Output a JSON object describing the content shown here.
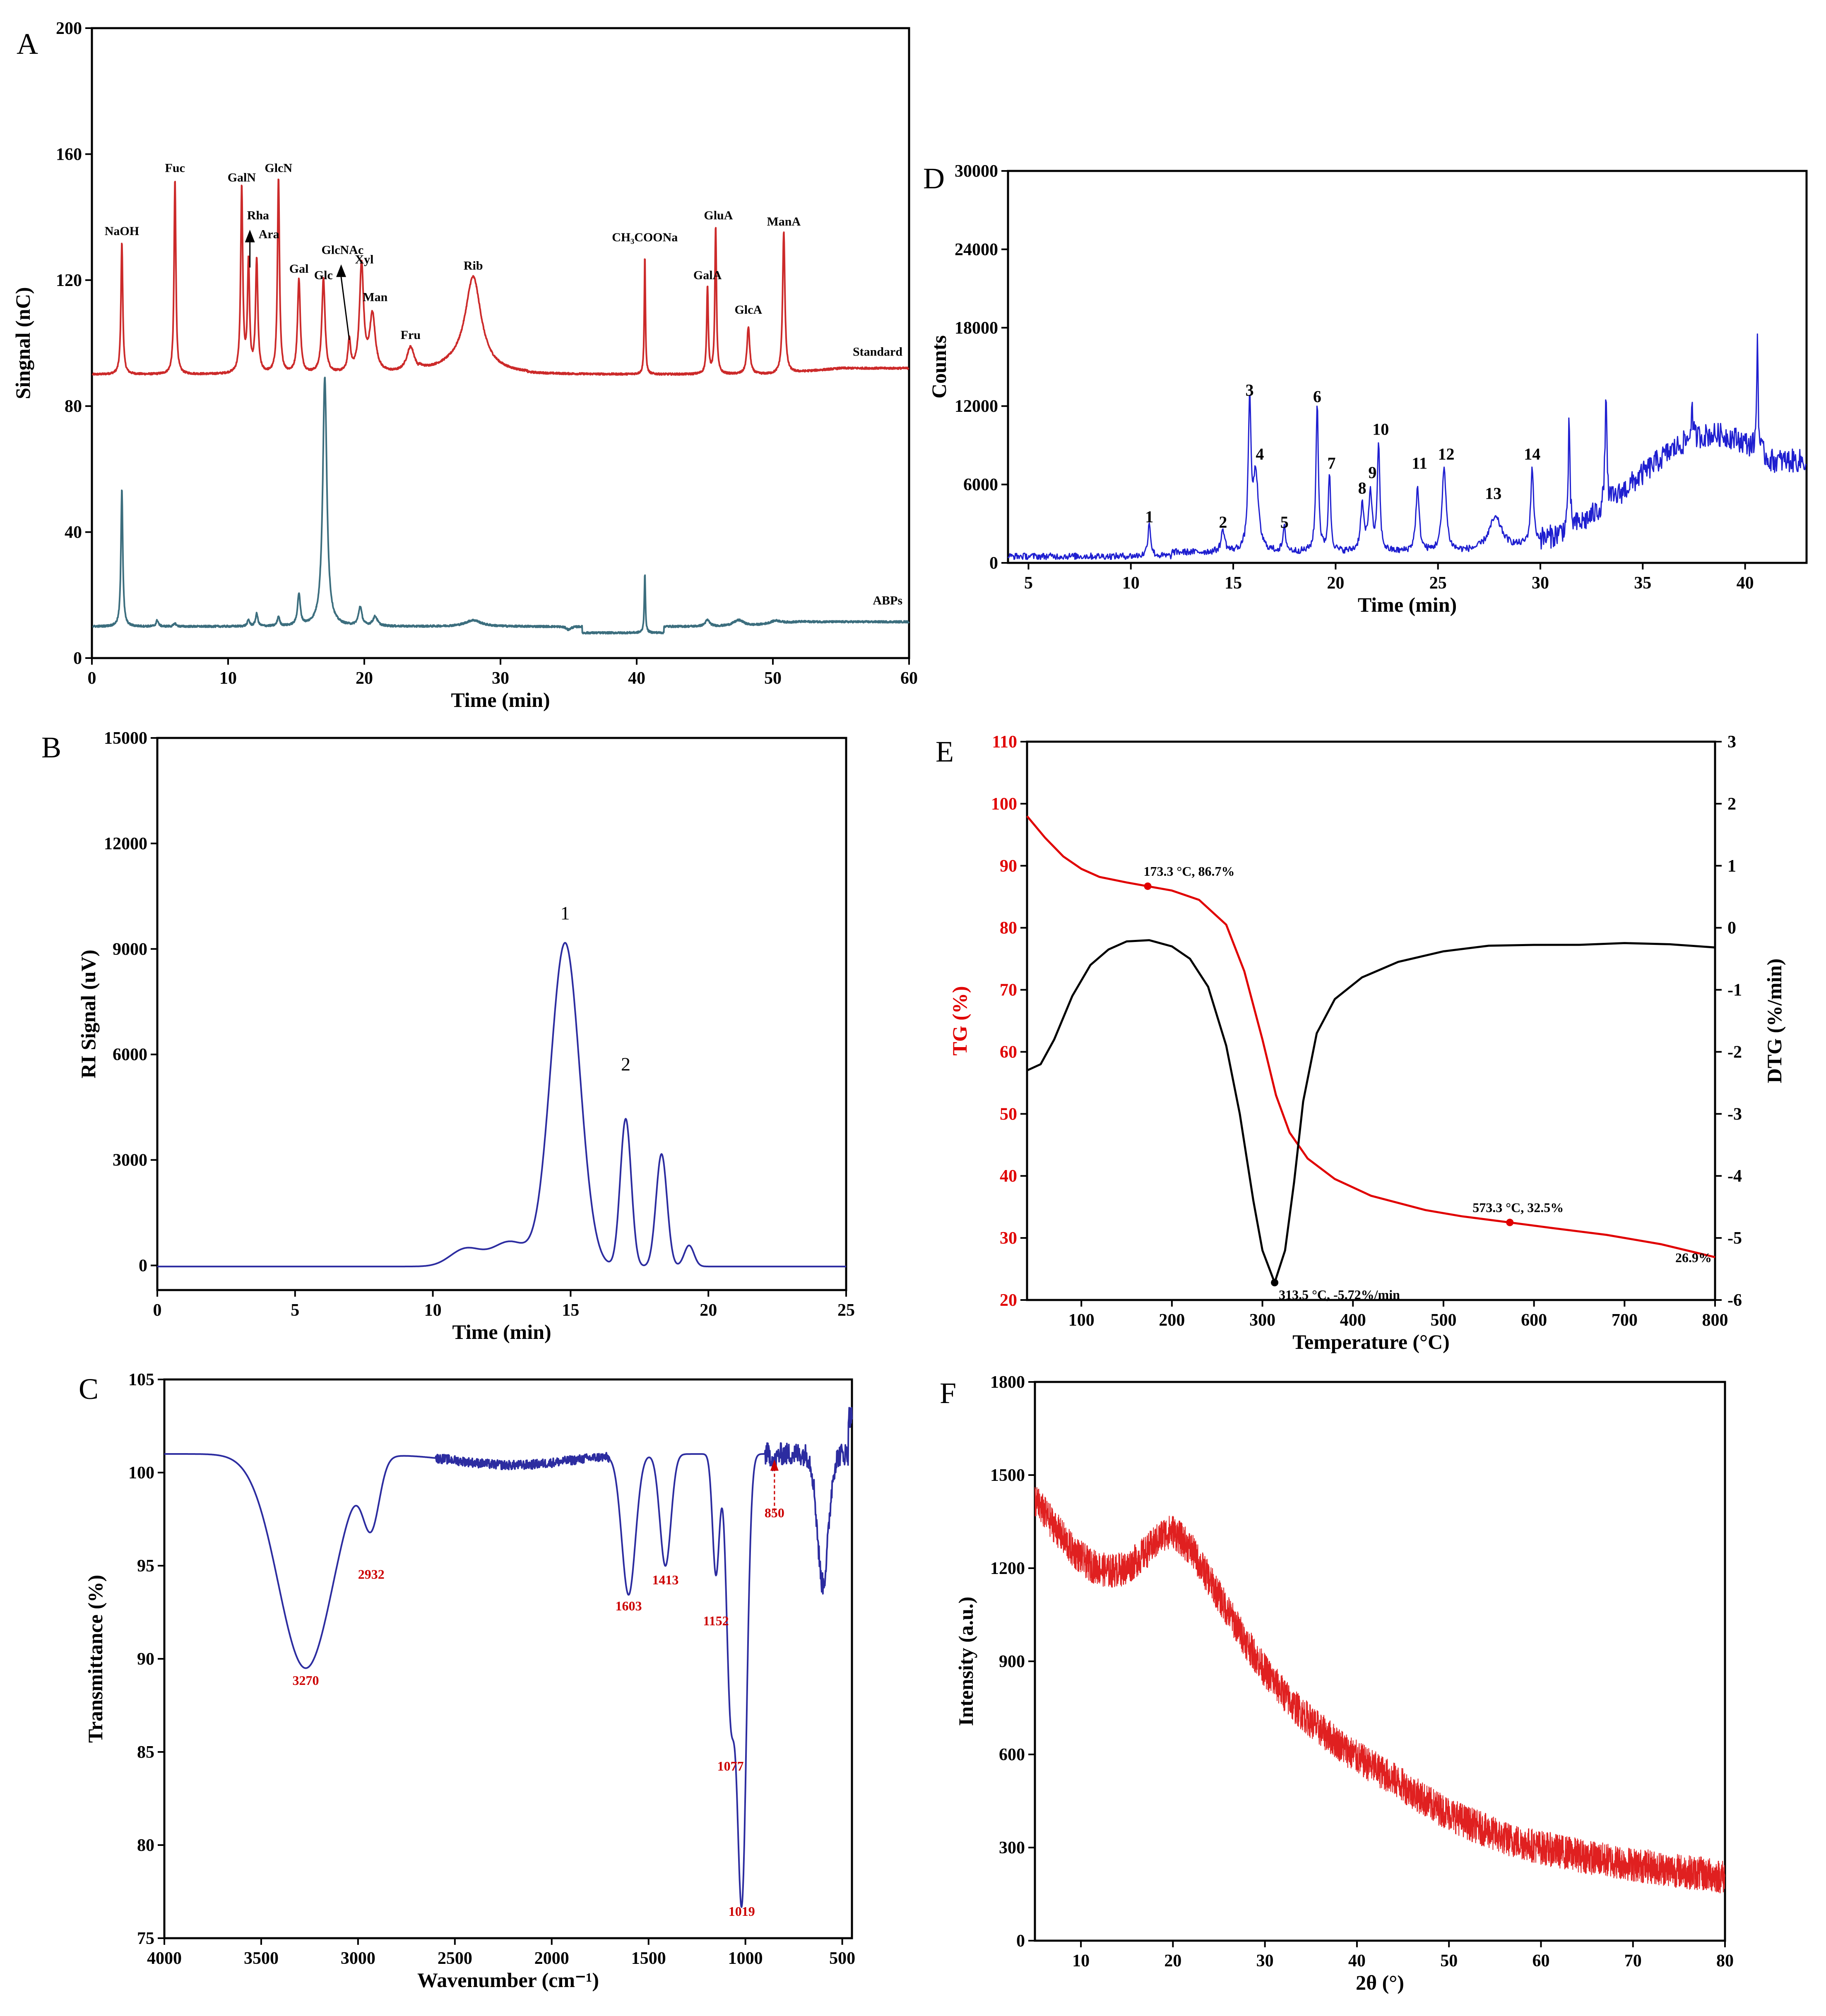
{
  "chart_data": [
    {
      "id": "A",
      "panel_label": "A",
      "type": "line",
      "xlabel": "Time (min)",
      "ylabel": "Singnal (nC)",
      "xlim": [
        0,
        60
      ],
      "ylim": [
        0,
        200
      ],
      "xticks": [
        0,
        10,
        20,
        30,
        40,
        50,
        60
      ],
      "yticks": [
        0,
        40,
        80,
        120,
        160,
        200
      ],
      "colors": {
        "Standard": "#cc2a2a",
        "ABPs": "#3c6e7e"
      },
      "series": [
        {
          "name": "Standard",
          "baseline": 90,
          "offset": 90,
          "peaks": [
            [
              2.2,
              132,
              0.08
            ],
            [
              6.1,
              152,
              0.08
            ],
            [
              11.0,
              149,
              0.09
            ],
            [
              11.5,
              125,
              0.09
            ],
            [
              12.1,
              126,
              0.1
            ],
            [
              13.7,
              152,
              0.09
            ],
            [
              15.2,
              120,
              0.12
            ],
            [
              17.0,
              120,
              0.14
            ],
            [
              18.9,
              100,
              0.12
            ],
            [
              19.8,
              124,
              0.18
            ],
            [
              20.6,
              108,
              0.25
            ],
            [
              23.4,
              98,
              0.35
            ],
            [
              28.0,
              119,
              0.7
            ],
            [
              40.6,
              128,
              0.05
            ],
            [
              45.2,
              118,
              0.07
            ],
            [
              45.8,
              137,
              0.07
            ],
            [
              48.2,
              105,
              0.12
            ],
            [
              50.8,
              135,
              0.1
            ]
          ]
        },
        {
          "name": "ABPs",
          "baseline": 10,
          "offset": 10,
          "peaks": [
            [
              2.2,
              54,
              0.08
            ],
            [
              4.8,
              12,
              0.1
            ],
            [
              6.1,
              11,
              0.1
            ],
            [
              11.5,
              12,
              0.1
            ],
            [
              12.1,
              14,
              0.1
            ],
            [
              13.7,
              13,
              0.1
            ],
            [
              15.2,
              20,
              0.12
            ],
            [
              17.1,
              89,
              0.18
            ],
            [
              19.7,
              16,
              0.15
            ],
            [
              20.8,
              13,
              0.2
            ],
            [
              28.0,
              12,
              0.7
            ],
            [
              35.0,
              9,
              0.2
            ],
            [
              40.6,
              29,
              0.05
            ],
            [
              45.2,
              12,
              0.2
            ],
            [
              47.5,
              12,
              0.5
            ],
            [
              50.2,
              11,
              0.5
            ]
          ]
        }
      ],
      "labels": [
        "NaOH",
        "Fuc",
        "GalN",
        "Rha",
        "Ara",
        "GlcN",
        "Gal",
        "Glc",
        "GlcNAc",
        "Xyl",
        "Man",
        "Fru",
        "Rib",
        "CH₃COONa",
        "GalA",
        "GluA",
        "GlcA",
        "ManA"
      ],
      "legend": [
        "Standard",
        "ABPs"
      ]
    },
    {
      "id": "B",
      "panel_label": "B",
      "type": "line",
      "xlabel": "Time (min)",
      "ylabel": "RI Signal (uV)",
      "xlim": [
        0,
        25
      ],
      "ylim": [
        -700,
        15000
      ],
      "xticks": [
        0,
        5,
        10,
        15,
        20,
        25
      ],
      "yticks": [
        0,
        3000,
        6000,
        9000,
        12000,
        15000
      ],
      "color": "#2c2ca0",
      "peaks": [
        [
          11.2,
          500,
          0.8
        ],
        [
          12.8,
          700,
          0.9
        ],
        [
          14.8,
          9200,
          0.75
        ],
        [
          17.0,
          4200,
          0.28
        ],
        [
          18.3,
          3200,
          0.28
        ],
        [
          19.3,
          600,
          0.25
        ]
      ],
      "peak_labels": [
        {
          "label": "1",
          "x": 14.8,
          "y": 9700
        },
        {
          "label": "2",
          "x": 17.0,
          "y": 5400
        }
      ]
    },
    {
      "id": "C",
      "panel_label": "C",
      "type": "line",
      "xlabel": "Wavenumber (cm⁻¹)",
      "ylabel": "Transmittance (%)",
      "xlim": [
        4000,
        450
      ],
      "ylim": [
        75,
        105
      ],
      "xticks": [
        4000,
        3500,
        3000,
        2500,
        2000,
        1500,
        1000,
        500
      ],
      "yticks": [
        75,
        80,
        85,
        90,
        95,
        100,
        105
      ],
      "color": "#2c2ca0",
      "baseline": 101,
      "bands": [
        [
          3270,
          11.5,
          200
        ],
        [
          2932,
          3.5,
          60
        ],
        [
          2200,
          0.6,
          400
        ],
        [
          1603,
          7.5,
          50
        ],
        [
          1413,
          6,
          40
        ],
        [
          1152,
          6.5,
          25
        ],
        [
          1077,
          13,
          30
        ],
        [
          1019,
          24,
          35
        ],
        [
          850,
          0.5,
          15
        ],
        [
          600,
          7,
          40
        ]
      ],
      "peak_labels": [
        {
          "label": "3270",
          "x": 3270,
          "y": 88.6
        },
        {
          "label": "2932",
          "x": 2932,
          "y": 94.3
        },
        {
          "label": "1603",
          "x": 1603,
          "y": 92.6
        },
        {
          "label": "1413",
          "x": 1413,
          "y": 94.0
        },
        {
          "label": "1152",
          "x": 1152,
          "y": 91.8
        },
        {
          "label": "1077",
          "x": 1077,
          "y": 84.0
        },
        {
          "label": "1019",
          "x": 1019,
          "y": 76.2
        },
        {
          "label": "850",
          "x": 850,
          "y": 97.6
        }
      ]
    },
    {
      "id": "D",
      "panel_label": "D",
      "type": "line",
      "xlabel": "Time (min)",
      "ylabel": "Counts",
      "xlim": [
        4,
        43
      ],
      "ylim": [
        0,
        30000
      ],
      "xticks": [
        5,
        10,
        15,
        20,
        25,
        30,
        35,
        40
      ],
      "yticks": [
        0,
        6000,
        12000,
        18000,
        24000,
        30000
      ],
      "color": "#1f1fd0",
      "peaks": [
        [
          10.9,
          2600,
          0.08
        ],
        [
          14.5,
          1700,
          0.1
        ],
        [
          15.8,
          11200,
          0.08
        ],
        [
          16.1,
          5800,
          0.15
        ],
        [
          17.5,
          1800,
          0.08
        ],
        [
          19.1,
          11500,
          0.07
        ],
        [
          19.7,
          6000,
          0.07
        ],
        [
          21.3,
          3500,
          0.1
        ],
        [
          21.7,
          4500,
          0.1
        ],
        [
          22.1,
          8300,
          0.07
        ],
        [
          24.0,
          4800,
          0.1
        ],
        [
          25.3,
          6400,
          0.12
        ],
        [
          27.8,
          2500,
          0.4
        ],
        [
          29.6,
          5800,
          0.08
        ],
        [
          31.4,
          8000,
          0.05
        ],
        [
          33.2,
          8800,
          0.05
        ],
        [
          37.4,
          2500,
          0.05
        ],
        [
          40.6,
          9000,
          0.04
        ]
      ],
      "peak_labels": [
        {
          "label": "1",
          "x": 10.9,
          "y": 3100
        },
        {
          "label": "2",
          "x": 14.5,
          "y": 2700
        },
        {
          "label": "3",
          "x": 15.8,
          "y": 12800
        },
        {
          "label": "4",
          "x": 16.3,
          "y": 7900
        },
        {
          "label": "5",
          "x": 17.5,
          "y": 2700
        },
        {
          "label": "6",
          "x": 19.1,
          "y": 12300
        },
        {
          "label": "7",
          "x": 19.8,
          "y": 7200
        },
        {
          "label": "8",
          "x": 21.3,
          "y": 5300
        },
        {
          "label": "9",
          "x": 21.8,
          "y": 6500
        },
        {
          "label": "10",
          "x": 22.2,
          "y": 9800
        },
        {
          "label": "11",
          "x": 24.1,
          "y": 7200
        },
        {
          "label": "12",
          "x": 25.4,
          "y": 7900
        },
        {
          "label": "13",
          "x": 27.7,
          "y": 4900
        },
        {
          "label": "14",
          "x": 29.6,
          "y": 7900
        }
      ]
    },
    {
      "id": "E",
      "panel_label": "E",
      "type": "line",
      "xlabel": "Temperature (°C)",
      "ylabel": "TG (%)",
      "ylabel2": "DTG (%/min)",
      "xlim": [
        40,
        800
      ],
      "ylim": [
        20,
        110
      ],
      "ylim2": [
        -6,
        3
      ],
      "xticks": [
        100,
        200,
        300,
        400,
        500,
        600,
        700,
        800
      ],
      "yticks": [
        20,
        30,
        40,
        50,
        60,
        70,
        80,
        90,
        100,
        110
      ],
      "yticks2": [
        -6,
        -5,
        -4,
        -3,
        -2,
        -1,
        0,
        1,
        2,
        3
      ],
      "colors": {
        "TG": "#e00000",
        "DTG": "#000000"
      },
      "tg": {
        "x": [
          40,
          60,
          80,
          100,
          120,
          150,
          173,
          200,
          230,
          260,
          280,
          300,
          315,
          330,
          350,
          380,
          420,
          480,
          520,
          573,
          620,
          680,
          740,
          800
        ],
        "y": [
          98,
          94.5,
          91.5,
          89.5,
          88.2,
          87.3,
          86.7,
          86.0,
          84.5,
          80.5,
          73,
          62,
          53,
          47,
          42.8,
          39.5,
          36.8,
          34.5,
          33.5,
          32.5,
          31.6,
          30.5,
          29,
          26.9
        ]
      },
      "dtg": {
        "x": [
          40,
          55,
          70,
          90,
          110,
          130,
          150,
          175,
          200,
          220,
          240,
          260,
          275,
          290,
          300,
          313.5,
          325,
          335,
          345,
          360,
          380,
          410,
          450,
          500,
          550,
          600,
          650,
          700,
          750,
          800
        ],
        "y": [
          -2.3,
          -2.2,
          -1.8,
          -1.1,
          -0.6,
          -0.35,
          -0.22,
          -0.2,
          -0.3,
          -0.5,
          -0.95,
          -1.9,
          -3.0,
          -4.4,
          -5.2,
          -5.72,
          -5.2,
          -4.1,
          -2.8,
          -1.7,
          -1.15,
          -0.8,
          -0.55,
          -0.38,
          -0.3,
          -0.27,
          -0.27,
          -0.26,
          -0.27,
          -0.33
        ]
      },
      "annotations": [
        {
          "label": "173.3 °C, 86.7%",
          "x": 173.3,
          "y": 86.7
        },
        {
          "label": "573.3 °C, 32.5%",
          "x": 573.3,
          "y": 32.5
        },
        {
          "label": "313.5 °C, -5.72%/min",
          "x": 313.5,
          "y": -5.72
        },
        {
          "label": "26.9%",
          "x": 800,
          "y": 26.9
        }
      ]
    },
    {
      "id": "F",
      "panel_label": "F",
      "type": "line",
      "xlabel": "2θ (°)",
      "ylabel": "Intensity (a.u.)",
      "xlim": [
        5,
        80
      ],
      "ylim": [
        0,
        1800
      ],
      "xticks": [
        10,
        20,
        30,
        40,
        50,
        60,
        70,
        80
      ],
      "yticks": [
        0,
        300,
        600,
        900,
        1200,
        1500,
        1800
      ],
      "color": "#e02020",
      "x": [
        5,
        7,
        9,
        11,
        13,
        15,
        17,
        19,
        20,
        22,
        24,
        26,
        28,
        30,
        33,
        36,
        40,
        44,
        48,
        52,
        56,
        60,
        65,
        70,
        75,
        80
      ],
      "y": [
        1420,
        1340,
        1260,
        1210,
        1190,
        1200,
        1250,
        1310,
        1320,
        1260,
        1160,
        1060,
        960,
        870,
        760,
        680,
        590,
        520,
        440,
        380,
        330,
        300,
        270,
        245,
        225,
        205
      ]
    }
  ]
}
